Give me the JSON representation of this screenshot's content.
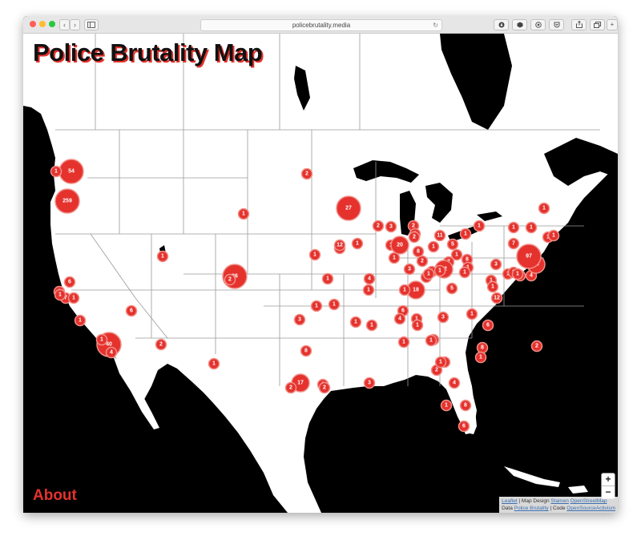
{
  "browser": {
    "url": "policebrutality.media",
    "back_glyph": "‹",
    "forward_glyph": "›",
    "reload_glyph": "↻",
    "new_tab_glyph": "+"
  },
  "page": {
    "title": "Police Brutality Map",
    "about_label": "About"
  },
  "zoom": {
    "in": "+",
    "out": "−"
  },
  "attribution": {
    "leaflet": "Leaflet",
    "map_design_prefix": " | Map Design ",
    "stamen": "Stamen",
    "osm": "OpenStreetMap",
    "data_prefix": "Data ",
    "police_brutality": "Police Brutality",
    "code_prefix": " | Code ",
    "open_source_activism": "OpenSourceActivism"
  },
  "colors": {
    "marker": "#e5322d",
    "marker_halo": "#f1908a",
    "land": "#ffffff",
    "water": "#000000"
  },
  "clusters": [
    {
      "label": "54",
      "size": "large"
    },
    {
      "label": "1",
      "size": "small"
    },
    {
      "label": "259",
      "size": "large"
    },
    {
      "label": "2",
      "size": "small"
    },
    {
      "label": "1",
      "size": "small"
    },
    {
      "label": "27",
      "size": "large"
    },
    {
      "label": "1",
      "size": "small"
    },
    {
      "label": "1",
      "size": "small"
    },
    {
      "label": "1",
      "size": "small"
    },
    {
      "label": "26",
      "size": "large"
    },
    {
      "label": "2",
      "size": "small"
    },
    {
      "label": "6",
      "size": "small"
    },
    {
      "label": "1",
      "size": "small"
    },
    {
      "label": "7",
      "size": "small"
    },
    {
      "label": "1",
      "size": "small"
    },
    {
      "label": "1",
      "size": "small"
    },
    {
      "label": "1",
      "size": "small"
    },
    {
      "label": "40",
      "size": "large"
    },
    {
      "label": "1",
      "size": "small"
    },
    {
      "label": "4",
      "size": "small"
    },
    {
      "label": "6",
      "size": "small"
    },
    {
      "label": "2",
      "size": "small"
    },
    {
      "label": "1",
      "size": "small"
    },
    {
      "label": "2",
      "size": "small"
    },
    {
      "label": "3",
      "size": "small"
    },
    {
      "label": "12",
      "size": "small"
    },
    {
      "label": "1",
      "size": "small"
    },
    {
      "label": "1",
      "size": "small"
    },
    {
      "label": "4",
      "size": "small"
    },
    {
      "label": "1",
      "size": "small"
    },
    {
      "label": "1",
      "size": "small"
    },
    {
      "label": "3",
      "size": "small"
    },
    {
      "label": "8",
      "size": "small"
    },
    {
      "label": "17",
      "size": "medium"
    },
    {
      "label": "2",
      "size": "small"
    },
    {
      "label": "1",
      "size": "small"
    },
    {
      "label": "2",
      "size": "small"
    },
    {
      "label": "2",
      "size": "small"
    },
    {
      "label": "3",
      "size": "small"
    },
    {
      "label": "1",
      "size": "small"
    },
    {
      "label": "20",
      "size": "medium"
    },
    {
      "label": "2",
      "size": "small"
    },
    {
      "label": "8",
      "size": "small"
    },
    {
      "label": "1",
      "size": "small"
    },
    {
      "label": "3",
      "size": "small"
    },
    {
      "label": "1",
      "size": "small"
    },
    {
      "label": "11",
      "size": "small"
    },
    {
      "label": "5",
      "size": "small"
    },
    {
      "label": "7",
      "size": "small"
    },
    {
      "label": "1",
      "size": "small"
    },
    {
      "label": "22",
      "size": "medium"
    },
    {
      "label": "18",
      "size": "medium"
    },
    {
      "label": "1",
      "size": "small"
    },
    {
      "label": "1",
      "size": "small"
    },
    {
      "label": "8",
      "size": "small"
    },
    {
      "label": "5",
      "size": "small"
    },
    {
      "label": "1",
      "size": "small"
    },
    {
      "label": "1",
      "size": "small"
    },
    {
      "label": "1",
      "size": "small"
    },
    {
      "label": "1",
      "size": "small"
    },
    {
      "label": "1",
      "size": "small"
    },
    {
      "label": "1",
      "size": "small"
    },
    {
      "label": "3",
      "size": "small"
    },
    {
      "label": "6",
      "size": "small"
    },
    {
      "label": "1",
      "size": "small"
    },
    {
      "label": "4",
      "size": "small"
    },
    {
      "label": "1",
      "size": "small"
    },
    {
      "label": "1",
      "size": "small"
    },
    {
      "label": "1",
      "size": "small"
    },
    {
      "label": "2",
      "size": "small"
    },
    {
      "label": "8",
      "size": "small"
    },
    {
      "label": "1",
      "size": "small"
    },
    {
      "label": "6",
      "size": "small"
    },
    {
      "label": "4",
      "size": "small"
    },
    {
      "label": "1",
      "size": "small"
    },
    {
      "label": "1",
      "size": "small"
    },
    {
      "label": "3",
      "size": "small"
    },
    {
      "label": "1",
      "size": "small"
    },
    {
      "label": "1",
      "size": "small"
    },
    {
      "label": "1",
      "size": "small"
    },
    {
      "label": "3",
      "size": "small"
    },
    {
      "label": "1",
      "size": "small"
    },
    {
      "label": "1",
      "size": "small"
    },
    {
      "label": "1",
      "size": "small"
    },
    {
      "label": "1",
      "size": "small"
    },
    {
      "label": "4",
      "size": "small"
    },
    {
      "label": "2",
      "size": "small"
    },
    {
      "label": "1",
      "size": "small"
    },
    {
      "label": "1",
      "size": "small"
    },
    {
      "label": "1",
      "size": "small"
    },
    {
      "label": "1",
      "size": "small"
    },
    {
      "label": "7",
      "size": "small"
    },
    {
      "label": "2",
      "size": "small"
    },
    {
      "label": "1",
      "size": "small"
    },
    {
      "label": "1",
      "size": "small"
    },
    {
      "label": "12",
      "size": "small"
    },
    {
      "label": "19",
      "size": "medium"
    },
    {
      "label": "97",
      "size": "large"
    },
    {
      "label": "1",
      "size": "small"
    },
    {
      "label": "1",
      "size": "small"
    },
    {
      "label": "2",
      "size": "small"
    },
    {
      "label": "8",
      "size": "small"
    },
    {
      "label": "6",
      "size": "small"
    },
    {
      "label": "8",
      "size": "small"
    },
    {
      "label": "1",
      "size": "small"
    }
  ]
}
